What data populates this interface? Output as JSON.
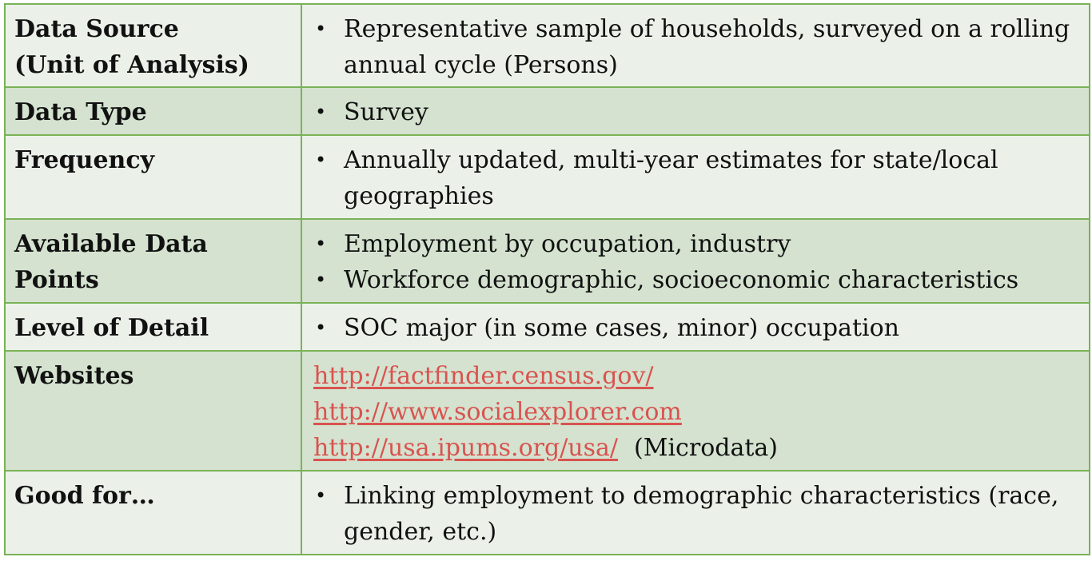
{
  "rows": [
    {
      "label": "Data Source (Unit of Analysis)",
      "label_lines": [
        "Data Source",
        "(Unit of Analysis)"
      ],
      "bullets": [
        "Representative sample of households, surveyed on a rolling annual cycle (Persons)"
      ]
    },
    {
      "label": "Data Type",
      "bullets": [
        "Survey"
      ]
    },
    {
      "label": "Frequency",
      "bullets": [
        "Annually updated, multi-year estimates for state/local geographies"
      ]
    },
    {
      "label": "Available Data Points",
      "label_lines": [
        "Available Data",
        "Points"
      ],
      "bullets": [
        "Employment by occupation, industry",
        "Workforce demographic, socioeconomic characteristics"
      ]
    },
    {
      "label": "Level of Detail",
      "bullets": [
        "SOC major (in some cases, minor) occupation"
      ]
    },
    {
      "label": "Websites",
      "links": [
        "http://factfinder.census.gov/",
        "http://www.socialexplorer.com",
        "http://usa.ipums.org/usa/"
      ],
      "link_note": "(Microdata)"
    },
    {
      "label": "Good for…",
      "bullets": [
        "Linking employment to demographic characteristics (race, gender, etc.)"
      ]
    }
  ],
  "bullet_symbol": "•",
  "colors": {
    "border": "#79b257",
    "row_light": "#ebf1e9",
    "row_dark": "#d4e2cf",
    "link": "#d9534f"
  }
}
